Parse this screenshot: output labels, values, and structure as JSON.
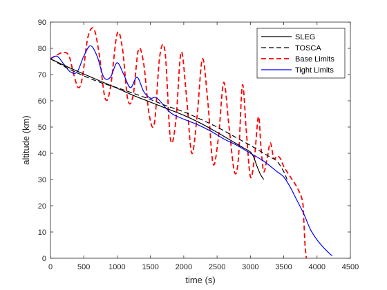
{
  "chart_data": {
    "type": "line",
    "xlabel": "time (s)",
    "ylabel": "altitude (km)",
    "xlim": [
      0,
      4500
    ],
    "ylim": [
      0,
      90
    ],
    "xticks": [
      "0",
      "500",
      "1000",
      "1500",
      "2000",
      "2500",
      "3000",
      "3500",
      "4000",
      "4500"
    ],
    "yticks": [
      "0",
      "10",
      "20",
      "30",
      "40",
      "50",
      "60",
      "70",
      "80",
      "90"
    ],
    "legend_position": "top-right",
    "grid": false,
    "series": [
      {
        "name": "SLEG",
        "color": "#000000",
        "dash": "solid",
        "width": 1.2,
        "x": [
          0,
          250,
          500,
          750,
          1000,
          1250,
          1500,
          1750,
          2000,
          2250,
          2500,
          2600,
          2700,
          2800,
          2900,
          3000,
          3050,
          3100,
          3150,
          3200
        ],
        "y": [
          76,
          73,
          70.2,
          67.5,
          64.8,
          62,
          59.5,
          57,
          54.5,
          51.5,
          48,
          46.5,
          45,
          43.5,
          42,
          40.5,
          38.5,
          35,
          32,
          30
        ]
      },
      {
        "name": "TOSCA",
        "color": "#000000",
        "dash": "dashed",
        "width": 1.2,
        "x": [
          0,
          250,
          500,
          750,
          1000,
          1250,
          1500,
          1750,
          2000,
          2250,
          2500,
          2750,
          3000,
          3100,
          3200,
          3300,
          3400,
          3500,
          3550
        ],
        "y": [
          76,
          72.5,
          69.5,
          67,
          65,
          62.8,
          60.5,
          58,
          55.8,
          53,
          50,
          46.5,
          43,
          41.5,
          40,
          38.5,
          37,
          33,
          30
        ]
      },
      {
        "name": "Base Limits",
        "color": "#ff0000",
        "dash": "dashed",
        "width": 1.8,
        "x": [
          0,
          100,
          200,
          280,
          350,
          420,
          480,
          560,
          650,
          730,
          820,
          900,
          1000,
          1080,
          1160,
          1240,
          1320,
          1400,
          1480,
          1560,
          1640,
          1720,
          1800,
          1880,
          1960,
          2040,
          2120,
          2200,
          2280,
          2360,
          2440,
          2520,
          2600,
          2680,
          2760,
          2820,
          2880,
          2940,
          3000,
          3060,
          3120,
          3160,
          3200,
          3250,
          3300,
          3350,
          3400,
          3450,
          3500,
          3600,
          3700,
          3780,
          3800,
          3820,
          3840
        ],
        "y": [
          76,
          77.5,
          78.5,
          77,
          70,
          65,
          69,
          84,
          87.5,
          78,
          61,
          65,
          85.5,
          80,
          60.5,
          62,
          79.5,
          74,
          55,
          51.5,
          77,
          78.5,
          45.5,
          52,
          78.5,
          62,
          40,
          54,
          76,
          60,
          36,
          46,
          67,
          50,
          33,
          38,
          66,
          48,
          31,
          38,
          54,
          42,
          33,
          38,
          44,
          38,
          39,
          38,
          35,
          31,
          27,
          22,
          15,
          5,
          0
        ]
      },
      {
        "name": "Tight Limits",
        "color": "#0000ff",
        "dash": "solid",
        "width": 1.2,
        "x": [
          0,
          100,
          200,
          300,
          400,
          500,
          600,
          700,
          800,
          900,
          1000,
          1100,
          1200,
          1300,
          1400,
          1500,
          1600,
          1800,
          2000,
          2200,
          2400,
          2600,
          2800,
          3000,
          3200,
          3400,
          3500,
          3600,
          3700,
          3800,
          3900,
          4000,
          4100,
          4200,
          4230
        ],
        "y": [
          76,
          77,
          74,
          71,
          71,
          77,
          81,
          77,
          69,
          69,
          74.5,
          70,
          65,
          69,
          63.5,
          61,
          61,
          55.5,
          53,
          51,
          48.5,
          45.5,
          43,
          40,
          37,
          33,
          31,
          27,
          22,
          17,
          11,
          7,
          4,
          1.5,
          1
        ]
      }
    ]
  }
}
